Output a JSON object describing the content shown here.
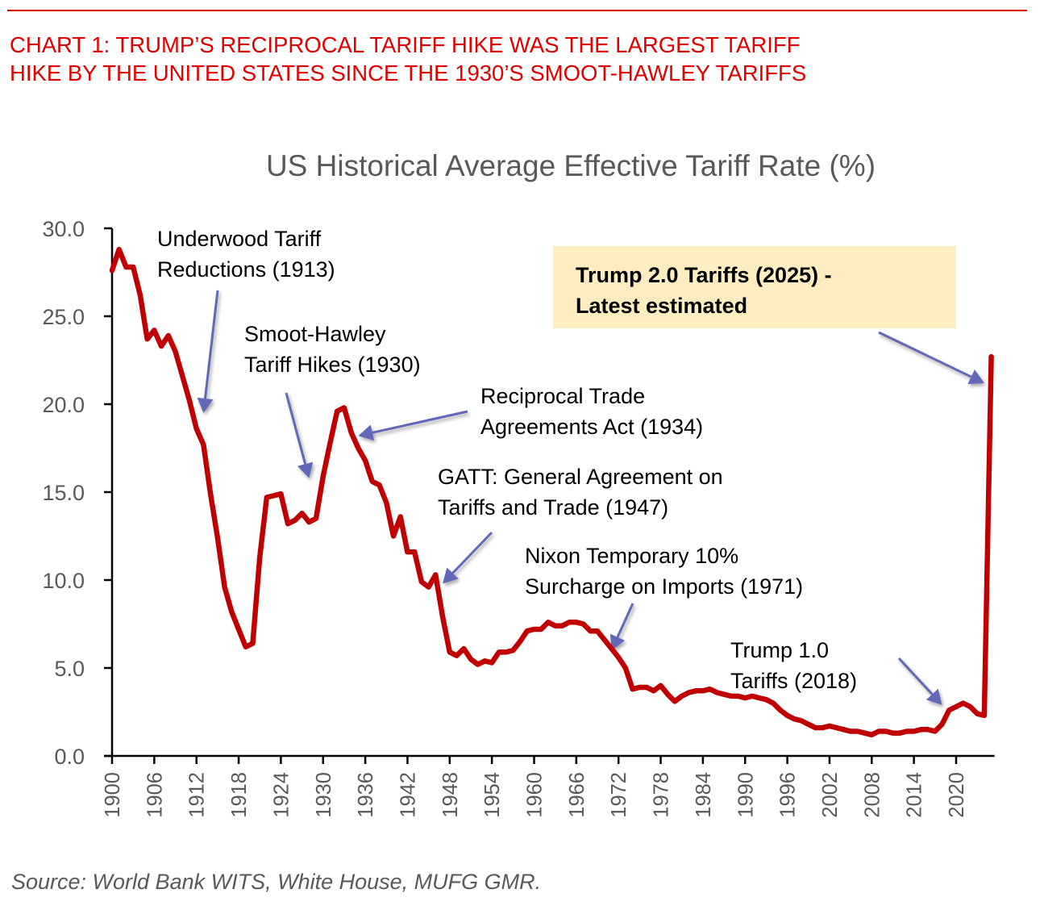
{
  "header": {
    "headline_line1": "CHART 1: TRUMP’S RECIPROCAL TARIFF HIKE WAS THE LARGEST TARIFF",
    "headline_line2": "HIKE BY THE UNITED STATES SINCE THE 1930’S SMOOT-HAWLEY TARIFFS",
    "accent_color": "#e00000"
  },
  "footer": {
    "source": "Source: World Bank WITS, White House, MUFG GMR."
  },
  "chart_data": {
    "type": "line",
    "title": "US Historical Average Effective Tariff Rate (%)",
    "xlabel": "",
    "ylabel": "",
    "ylim": [
      0,
      30
    ],
    "xlim": [
      1900,
      2025
    ],
    "grid": false,
    "legend": "none",
    "line_color": "#c00000",
    "yticks": [
      "0.0",
      "5.0",
      "10.0",
      "15.0",
      "20.0",
      "25.0",
      "30.0"
    ],
    "ytick_values": [
      0,
      5,
      10,
      15,
      20,
      25,
      30
    ],
    "xticks": [
      "1900",
      "1906",
      "1912",
      "1918",
      "1924",
      "1930",
      "1936",
      "1942",
      "1948",
      "1954",
      "1960",
      "1966",
      "1972",
      "1978",
      "1984",
      "1990",
      "1996",
      "2002",
      "2008",
      "2014",
      "2020"
    ],
    "series": [
      {
        "name": "Average Effective Tariff Rate (%)",
        "x": [
          1900,
          1901,
          1902,
          1903,
          1904,
          1905,
          1906,
          1907,
          1908,
          1909,
          1910,
          1911,
          1912,
          1913,
          1914,
          1915,
          1916,
          1917,
          1918,
          1919,
          1920,
          1921,
          1922,
          1923,
          1924,
          1925,
          1926,
          1927,
          1928,
          1929,
          1930,
          1931,
          1932,
          1933,
          1934,
          1935,
          1936,
          1937,
          1938,
          1939,
          1940,
          1941,
          1942,
          1943,
          1944,
          1945,
          1946,
          1947,
          1948,
          1949,
          1950,
          1951,
          1952,
          1953,
          1954,
          1955,
          1956,
          1957,
          1958,
          1959,
          1960,
          1961,
          1962,
          1963,
          1964,
          1965,
          1966,
          1967,
          1968,
          1969,
          1970,
          1971,
          1972,
          1973,
          1974,
          1975,
          1976,
          1977,
          1978,
          1979,
          1980,
          1981,
          1982,
          1983,
          1984,
          1985,
          1986,
          1987,
          1988,
          1989,
          1990,
          1991,
          1992,
          1993,
          1994,
          1995,
          1996,
          1997,
          1998,
          1999,
          2000,
          2001,
          2002,
          2003,
          2004,
          2005,
          2006,
          2007,
          2008,
          2009,
          2010,
          2011,
          2012,
          2013,
          2014,
          2015,
          2016,
          2017,
          2018,
          2019,
          2020,
          2021,
          2022,
          2023,
          2024,
          2025
        ],
        "values": [
          27.6,
          28.8,
          27.8,
          27.8,
          26.2,
          23.7,
          24.2,
          23.3,
          23.9,
          23.0,
          21.6,
          20.2,
          18.6,
          17.7,
          14.9,
          12.4,
          9.6,
          8.2,
          7.2,
          6.2,
          6.4,
          11.3,
          14.7,
          14.8,
          14.9,
          13.2,
          13.4,
          13.8,
          13.3,
          13.5,
          15.9,
          17.8,
          19.6,
          19.8,
          18.4,
          17.5,
          16.8,
          15.6,
          15.4,
          14.4,
          12.5,
          13.6,
          11.6,
          11.6,
          9.9,
          9.6,
          10.3,
          7.9,
          5.9,
          5.7,
          6.1,
          5.5,
          5.2,
          5.4,
          5.3,
          5.9,
          5.9,
          6.0,
          6.5,
          7.1,
          7.2,
          7.2,
          7.6,
          7.4,
          7.4,
          7.6,
          7.6,
          7.5,
          7.1,
          7.1,
          6.6,
          6.1,
          5.6,
          5.0,
          3.8,
          3.9,
          3.9,
          3.7,
          4.0,
          3.5,
          3.1,
          3.4,
          3.6,
          3.7,
          3.7,
          3.8,
          3.6,
          3.5,
          3.4,
          3.4,
          3.3,
          3.4,
          3.3,
          3.2,
          3.0,
          2.6,
          2.3,
          2.1,
          2.0,
          1.8,
          1.6,
          1.6,
          1.7,
          1.6,
          1.5,
          1.4,
          1.4,
          1.3,
          1.2,
          1.4,
          1.4,
          1.3,
          1.3,
          1.4,
          1.4,
          1.5,
          1.5,
          1.4,
          1.8,
          2.6,
          2.8,
          3.0,
          2.8,
          2.4,
          2.3,
          22.7
        ]
      }
    ],
    "annotations": [
      {
        "id": "underwood",
        "lines": [
          "Underwood Tariff",
          "Reductions (1913)"
        ],
        "target_year": 1913,
        "target_value": 19.5,
        "bold": false
      },
      {
        "id": "smoot-hawley",
        "lines": [
          "Smoot-Hawley",
          "Tariff Hikes (1930)"
        ],
        "target_year": 1928,
        "target_value": 15.8,
        "bold": false
      },
      {
        "id": "rtaa",
        "lines": [
          "Reciprocal Trade",
          "Agreements Act (1934)"
        ],
        "target_year": 1935,
        "target_value": 18.2,
        "bold": false
      },
      {
        "id": "gatt",
        "lines": [
          "GATT: General Agreement on",
          "Tariffs and Trade (1947)"
        ],
        "target_year": 1947,
        "target_value": 9.8,
        "bold": false
      },
      {
        "id": "nixon",
        "lines": [
          "Nixon Temporary 10%",
          "Surcharge on Imports (1971)"
        ],
        "target_year": 1971,
        "target_value": 6.0,
        "bold": false
      },
      {
        "id": "trump1",
        "lines": [
          "Trump 1.0",
          "Tariffs (2018)"
        ],
        "target_year": 2018,
        "target_value": 2.9,
        "bold": false
      },
      {
        "id": "trump2",
        "lines": [
          "Trump 2.0 Tariffs (2025) -",
          "Latest estimated"
        ],
        "target_year": 2024,
        "target_value": 21.2,
        "bold": true,
        "box_color": "#fdedc0"
      }
    ],
    "arrow_color": "#6268b8"
  }
}
